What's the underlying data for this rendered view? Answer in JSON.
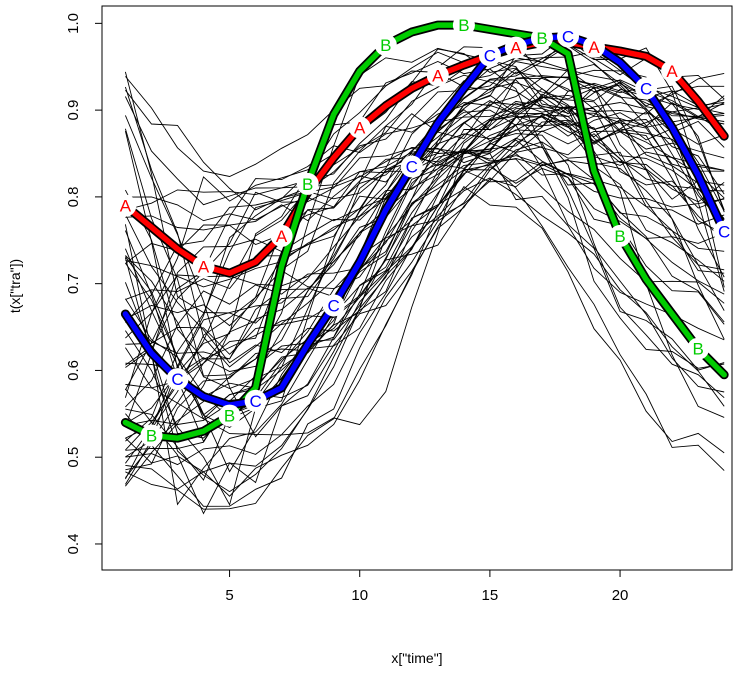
{
  "chart_data": {
    "type": "line",
    "xlabel": "x[\"time\"]",
    "ylabel": "t(x[\"tra\"])",
    "xlim": [
      0.1,
      24.3
    ],
    "ylim": [
      0.37,
      1.02
    ],
    "x_ticks": [
      5,
      10,
      15,
      20
    ],
    "y_ticks": [
      0.4,
      0.5,
      0.6,
      0.7,
      0.8,
      0.9,
      1.0
    ],
    "x_tick_labels": [
      "5",
      "10",
      "15",
      "20"
    ],
    "y_tick_labels": [
      "0.4",
      "0.5",
      "0.6",
      "0.7",
      "0.8",
      "0.9",
      "1.0"
    ],
    "grid": false,
    "legend": "none",
    "x": [
      1,
      2,
      3,
      4,
      5,
      6,
      7,
      8,
      9,
      10,
      11,
      12,
      13,
      14,
      15,
      16,
      17,
      18,
      19,
      20,
      21,
      22,
      23,
      24
    ],
    "series": [
      {
        "label": "A",
        "color": "#ff0000",
        "values": [
          0.79,
          0.765,
          0.74,
          0.72,
          0.712,
          0.725,
          0.755,
          0.805,
          0.845,
          0.88,
          0.905,
          0.925,
          0.94,
          0.952,
          0.963,
          0.972,
          0.978,
          0.978,
          0.973,
          0.968,
          0.962,
          0.945,
          0.91,
          0.87
        ],
        "marker_x": [
          1,
          4,
          7,
          10,
          13,
          16,
          19,
          22
        ]
      },
      {
        "label": "B",
        "color": "#00cc00",
        "values": [
          0.54,
          0.525,
          0.522,
          0.53,
          0.548,
          0.58,
          0.72,
          0.815,
          0.895,
          0.945,
          0.975,
          0.99,
          0.998,
          0.998,
          0.993,
          0.988,
          0.983,
          0.965,
          0.83,
          0.755,
          0.705,
          0.665,
          0.625,
          0.595
        ],
        "marker_x": [
          2,
          5,
          8,
          11,
          14,
          17,
          20,
          23
        ]
      },
      {
        "label": "C",
        "color": "#0000ff",
        "values": [
          0.665,
          0.62,
          0.59,
          0.57,
          0.56,
          0.565,
          0.58,
          0.63,
          0.675,
          0.725,
          0.785,
          0.835,
          0.885,
          0.925,
          0.963,
          0.975,
          0.983,
          0.985,
          0.975,
          0.955,
          0.925,
          0.88,
          0.825,
          0.76
        ],
        "marker_x": [
          3,
          6,
          9,
          12,
          15,
          18,
          21,
          24
        ]
      }
    ],
    "background_trajectories_count": 60
  }
}
